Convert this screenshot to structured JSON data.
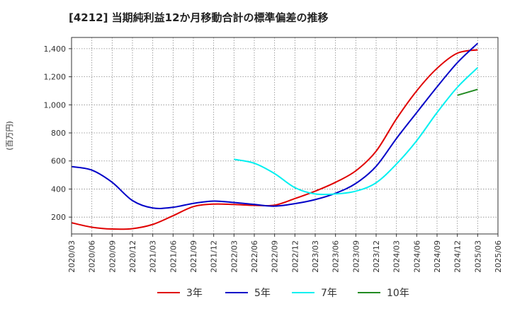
{
  "chart_data": {
    "type": "line",
    "title": "[4212]  当期純利益12か月移動合計の標準偏差の推移",
    "ylabel": "(百万円)",
    "xlabel": "",
    "ylim": [
      80,
      1480
    ],
    "yticks": [
      200,
      400,
      600,
      800,
      1000,
      1200,
      1400
    ],
    "ytick_labels": [
      "200",
      "400",
      "600",
      "800",
      "1,000",
      "1,200",
      "1,400"
    ],
    "x_categories": [
      "2020/03",
      "2020/06",
      "2020/09",
      "2020/12",
      "2021/03",
      "2021/06",
      "2021/09",
      "2021/12",
      "2022/03",
      "2022/06",
      "2022/09",
      "2022/12",
      "2023/03",
      "2023/06",
      "2023/09",
      "2023/12",
      "2024/03",
      "2024/06",
      "2024/09",
      "2024/12",
      "2025/03",
      "2025/06"
    ],
    "grid": true,
    "legend_position": "bottom",
    "series": [
      {
        "name": "3年",
        "color": "#e00000",
        "x": [
          "2020/03",
          "2020/06",
          "2020/09",
          "2020/12",
          "2021/03",
          "2021/06",
          "2021/09",
          "2021/12",
          "2022/03",
          "2022/06",
          "2022/09",
          "2022/12",
          "2023/03",
          "2023/06",
          "2023/09",
          "2023/12",
          "2024/03",
          "2024/06",
          "2024/09",
          "2024/12",
          "2025/03"
        ],
        "values": [
          160,
          128,
          115,
          118,
          148,
          210,
          275,
          293,
          290,
          284,
          285,
          332,
          385,
          448,
          530,
          670,
          900,
          1100,
          1260,
          1368,
          1392
        ]
      },
      {
        "name": "5年",
        "color": "#0000c8",
        "x": [
          "2020/03",
          "2020/06",
          "2020/09",
          "2020/12",
          "2021/03",
          "2021/06",
          "2021/09",
          "2021/12",
          "2022/03",
          "2022/06",
          "2022/09",
          "2022/12",
          "2023/03",
          "2023/06",
          "2023/09",
          "2023/12",
          "2024/03",
          "2024/06",
          "2024/09",
          "2024/12",
          "2025/03"
        ],
        "values": [
          560,
          535,
          448,
          318,
          265,
          270,
          298,
          314,
          304,
          290,
          278,
          296,
          325,
          370,
          440,
          562,
          760,
          945,
          1128,
          1300,
          1438
        ]
      },
      {
        "name": "7年",
        "color": "#00f0f0",
        "x": [
          "2022/03",
          "2022/06",
          "2022/09",
          "2022/12",
          "2023/03",
          "2023/06",
          "2023/09",
          "2023/12",
          "2024/03",
          "2024/06",
          "2024/09",
          "2024/12",
          "2025/03"
        ],
        "values": [
          612,
          584,
          510,
          410,
          365,
          365,
          385,
          445,
          578,
          745,
          945,
          1125,
          1265
        ]
      },
      {
        "name": "10年",
        "color": "#228b22",
        "x": [
          "2024/12",
          "2025/03"
        ],
        "values": [
          1068,
          1110
        ]
      }
    ]
  }
}
